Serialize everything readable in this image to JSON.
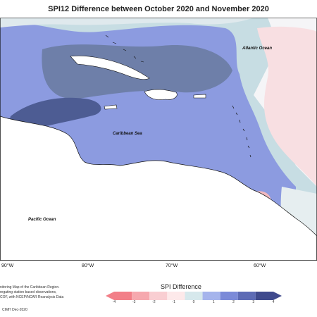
{
  "title": "SPI12 Difference between October 2020 and November 2020",
  "labels": {
    "atlantic": "Atlantic Ocean",
    "caribbean": "Caribbean Sea",
    "pacific": "Pacific Ocean"
  },
  "longitudes": [
    "90°W",
    "80°W",
    "70°W",
    "60°W"
  ],
  "credits": [
    "nitoring Map of the Caribbean Region.",
    "regating station based observations,",
    "COF, with NCEP/NCAR Reanalysis Data"
  ],
  "copyright": "CIMH Dec-2020",
  "legend": {
    "title": "SPI Difference",
    "ticks": [
      "-4",
      "-3",
      "-2",
      "-1",
      "0",
      "1",
      "2",
      "3",
      "4"
    ],
    "colors": [
      "#f27f88",
      "#f6a8ae",
      "#f9ced2",
      "#fde9ea",
      "#d6e8ec",
      "#a5b4ec",
      "#7b8ad8",
      "#5d6bb5",
      "#3f4a8d"
    ]
  }
}
